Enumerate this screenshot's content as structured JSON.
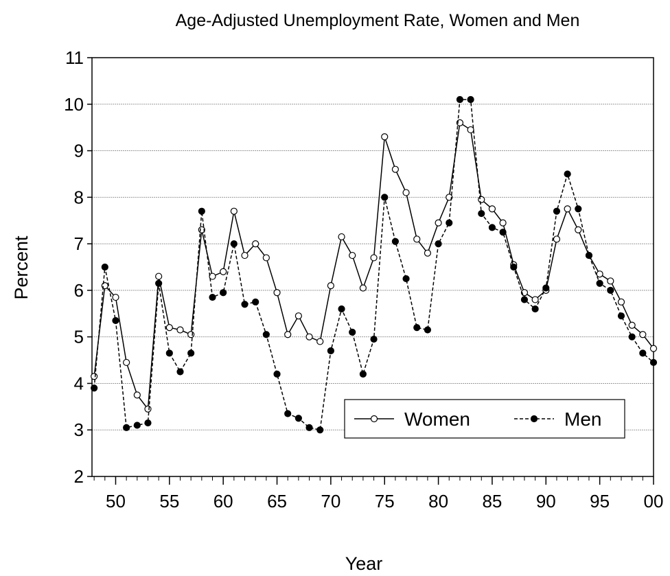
{
  "chart_data": {
    "type": "line",
    "title": "Age-Adjusted Unemployment Rate, Women and Men",
    "xlabel": "Year",
    "ylabel": "Percent",
    "x": [
      1948,
      1949,
      1950,
      1951,
      1952,
      1953,
      1954,
      1955,
      1956,
      1957,
      1958,
      1959,
      1960,
      1961,
      1962,
      1963,
      1964,
      1965,
      1966,
      1967,
      1968,
      1969,
      1970,
      1971,
      1972,
      1973,
      1974,
      1975,
      1976,
      1977,
      1978,
      1979,
      1980,
      1981,
      1982,
      1983,
      1984,
      1985,
      1986,
      1987,
      1988,
      1989,
      1990,
      1991,
      1992,
      1993,
      1994,
      1995,
      1996,
      1997,
      1998,
      1999,
      2000
    ],
    "series": [
      {
        "name": "Women",
        "color": "#000000",
        "linestyle": "solid",
        "marker": "open",
        "values": [
          4.15,
          6.1,
          5.85,
          4.45,
          3.75,
          3.45,
          6.3,
          5.2,
          5.15,
          5.05,
          7.3,
          6.3,
          6.4,
          7.7,
          6.75,
          7.0,
          6.7,
          5.95,
          5.05,
          5.45,
          5.0,
          4.9,
          6.1,
          7.15,
          6.75,
          6.05,
          6.7,
          9.3,
          8.6,
          8.1,
          7.1,
          6.8,
          7.45,
          8.0,
          9.6,
          9.45,
          7.95,
          7.75,
          7.45,
          6.55,
          5.95,
          5.8,
          6.0,
          7.1,
          7.75,
          7.3,
          6.75,
          6.35,
          6.2,
          5.75,
          5.25,
          5.05,
          4.75
        ]
      },
      {
        "name": "Men",
        "color": "#000000",
        "linestyle": "dashed",
        "marker": "filled",
        "values": [
          3.9,
          6.5,
          5.35,
          3.05,
          3.1,
          3.15,
          6.15,
          4.65,
          4.25,
          4.65,
          7.7,
          5.85,
          5.95,
          7.0,
          5.7,
          5.75,
          5.05,
          4.2,
          3.35,
          3.25,
          3.05,
          3.0,
          4.7,
          5.6,
          5.1,
          4.2,
          4.95,
          8.0,
          7.05,
          6.25,
          5.2,
          5.15,
          7.0,
          7.45,
          10.1,
          10.1,
          7.65,
          7.35,
          7.25,
          6.5,
          5.8,
          5.6,
          6.05,
          7.7,
          8.5,
          7.75,
          6.75,
          6.15,
          6.0,
          5.45,
          5.0,
          4.65,
          4.45
        ]
      }
    ],
    "xlim": [
      1947.8,
      2000
    ],
    "xticks": [
      {
        "value": 1950,
        "label": "50"
      },
      {
        "value": 1955,
        "label": "55"
      },
      {
        "value": 1960,
        "label": "60"
      },
      {
        "value": 1965,
        "label": "65"
      },
      {
        "value": 1970,
        "label": "70"
      },
      {
        "value": 1975,
        "label": "75"
      },
      {
        "value": 1980,
        "label": "80"
      },
      {
        "value": 1985,
        "label": "85"
      },
      {
        "value": 1990,
        "label": "90"
      },
      {
        "value": 1995,
        "label": "95"
      },
      {
        "value": 2000,
        "label": "00"
      }
    ],
    "ylim": [
      2,
      11
    ],
    "yticks": [
      2,
      3,
      4,
      5,
      6,
      7,
      8,
      9,
      10,
      11
    ],
    "grid": true,
    "legend": "lower right"
  }
}
